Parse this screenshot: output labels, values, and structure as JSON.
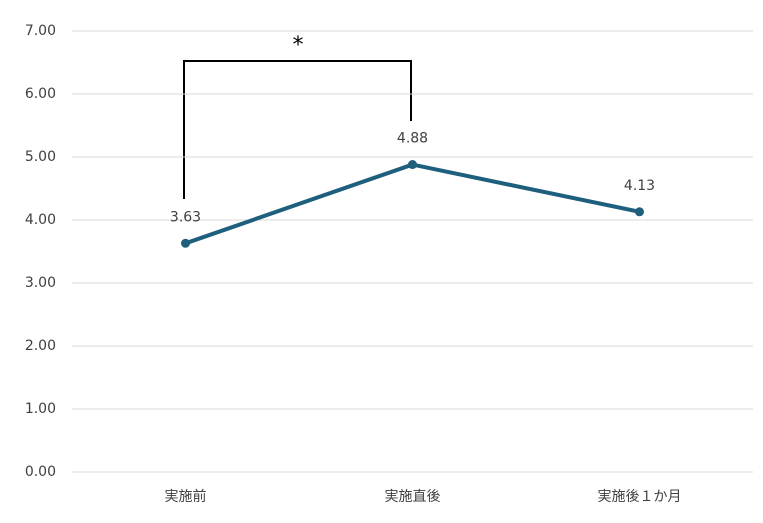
{
  "chart_data": {
    "type": "line",
    "categories": [
      "実施前",
      "実施直後",
      "実施後１か月"
    ],
    "series": [
      {
        "name": null,
        "color": "#1f5f7e",
        "values": [
          3.63,
          4.88,
          4.13
        ]
      }
    ],
    "ylim": [
      0,
      7
    ],
    "yticks": [
      {
        "value": 0,
        "label": "0.00"
      },
      {
        "value": 1,
        "label": "1.00"
      },
      {
        "value": 2,
        "label": "2.00"
      },
      {
        "value": 3,
        "label": "3.00"
      },
      {
        "value": 4,
        "label": "4.00"
      },
      {
        "value": 5,
        "label": "5.00"
      },
      {
        "value": 6,
        "label": "6.00"
      },
      {
        "value": 7,
        "label": "7.00"
      }
    ],
    "grid": true,
    "annotations": [
      "*"
    ]
  }
}
